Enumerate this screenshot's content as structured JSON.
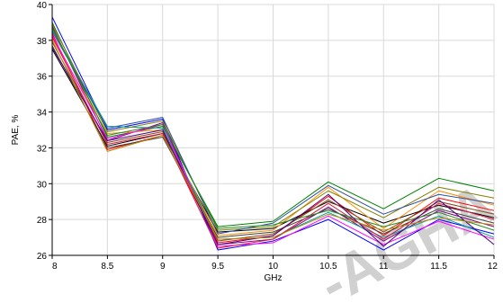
{
  "chart_data": {
    "type": "line",
    "title": "",
    "xlabel": "GHz",
    "ylabel": "PAE, %",
    "x": [
      8,
      8.5,
      9,
      9.5,
      10,
      10.5,
      11,
      11.5,
      12
    ],
    "xlim": [
      8,
      12
    ],
    "ylim": [
      26,
      40
    ],
    "x_ticks": [
      "8",
      "8.5",
      "9",
      "9.5",
      "10",
      "10.5",
      "11",
      "11.5",
      "12"
    ],
    "y_ticks": [
      "26",
      "28",
      "30",
      "32",
      "34",
      "36",
      "38",
      "40"
    ],
    "grid": true,
    "legend": "none",
    "series": [
      {
        "color": "#008000",
        "values": [
          39.0,
          32.6,
          33.2,
          27.6,
          27.9,
          30.1,
          28.6,
          30.3,
          29.6
        ]
      },
      {
        "color": "#ff0000",
        "values": [
          38.4,
          31.9,
          32.7,
          26.7,
          27.1,
          29.3,
          27.1,
          29.2,
          28.5
        ]
      },
      {
        "color": "#0000ff",
        "values": [
          39.3,
          33.0,
          33.6,
          26.3,
          26.8,
          28.0,
          26.3,
          28.0,
          27.2
        ]
      },
      {
        "color": "#000000",
        "values": [
          37.5,
          32.1,
          32.8,
          27.3,
          27.5,
          29.0,
          27.8,
          28.8,
          28.1
        ]
      },
      {
        "color": "#800080",
        "values": [
          38.8,
          32.4,
          33.4,
          26.6,
          26.9,
          28.7,
          26.8,
          28.5,
          27.6
        ]
      },
      {
        "color": "#ff8c00",
        "values": [
          38.1,
          32.8,
          33.0,
          27.1,
          27.4,
          29.8,
          27.5,
          29.6,
          28.8
        ]
      },
      {
        "color": "#00a0a0",
        "values": [
          38.6,
          33.2,
          33.1,
          26.9,
          27.0,
          28.4,
          27.0,
          28.2,
          27.0
        ]
      },
      {
        "color": "#8b4513",
        "values": [
          37.9,
          32.3,
          32.9,
          26.8,
          27.2,
          29.1,
          27.3,
          29.0,
          28.3
        ]
      },
      {
        "color": "#ff00ff",
        "values": [
          38.3,
          32.5,
          33.3,
          26.5,
          26.7,
          28.2,
          26.6,
          27.9,
          26.9
        ]
      },
      {
        "color": "#808000",
        "values": [
          38.9,
          32.9,
          33.5,
          27.4,
          27.6,
          29.6,
          28.1,
          29.8,
          29.2
        ]
      },
      {
        "color": "#404040",
        "values": [
          37.7,
          32.0,
          32.6,
          27.0,
          27.3,
          28.6,
          27.2,
          28.6,
          27.8
        ]
      },
      {
        "color": "#2f4f9f",
        "values": [
          38.5,
          33.1,
          33.7,
          27.2,
          27.8,
          29.9,
          28.3,
          29.4,
          28.9
        ]
      },
      {
        "color": "#dc143c",
        "values": [
          38.2,
          32.2,
          32.8,
          26.4,
          26.9,
          28.9,
          26.9,
          28.9,
          28.0
        ]
      },
      {
        "color": "#228b22",
        "values": [
          38.7,
          32.7,
          33.3,
          27.5,
          27.7,
          28.5,
          27.6,
          28.4,
          27.4
        ]
      },
      {
        "color": "#4b0082",
        "values": [
          37.6,
          32.4,
          33.0,
          26.6,
          27.1,
          29.4,
          26.5,
          29.1,
          26.6
        ]
      },
      {
        "color": "#b8860b",
        "values": [
          38.0,
          31.8,
          32.7,
          26.9,
          27.0,
          28.3,
          27.4,
          28.1,
          27.7
        ]
      }
    ]
  }
}
